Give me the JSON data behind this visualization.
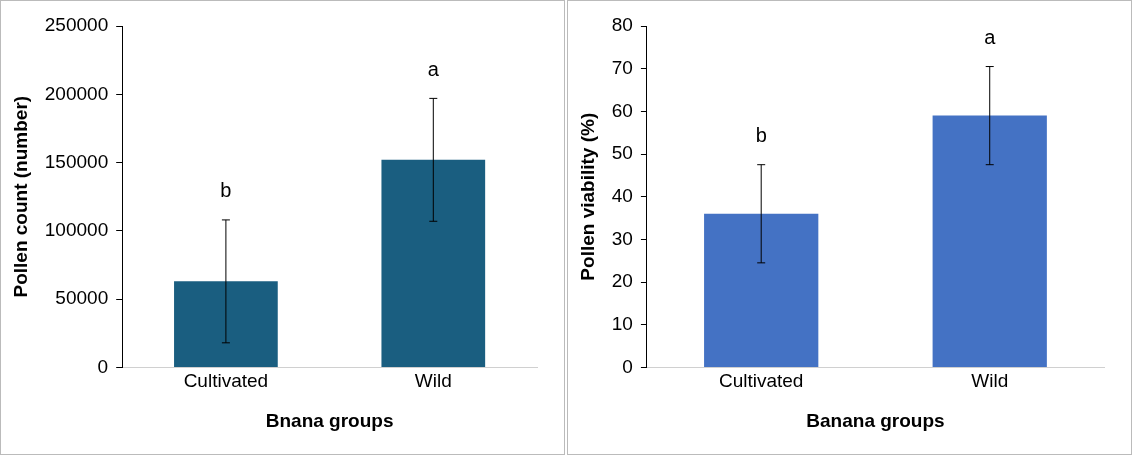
{
  "chart_data": [
    {
      "type": "bar",
      "xlabel": "Bnana groups",
      "ylabel": "Pollen count (number)",
      "categories": [
        "Cultivated",
        "Wild"
      ],
      "values": [
        63000,
        152000
      ],
      "errors": [
        45000,
        45000
      ],
      "color": "#1a5e80",
      "ylim": [
        0,
        250000
      ],
      "yticks": [
        0,
        50000,
        100000,
        150000,
        200000,
        250000
      ],
      "grid": false,
      "legend": false,
      "annotations": [
        "b",
        "a"
      ]
    },
    {
      "type": "bar",
      "xlabel": "Banana groups",
      "ylabel": "Pollen viability (%)",
      "categories": [
        "Cultivated",
        "Wild"
      ],
      "values": [
        36,
        59
      ],
      "errors": [
        11.5,
        11.5
      ],
      "color": "#4472c4",
      "ylim": [
        0,
        80
      ],
      "yticks": [
        0,
        10,
        20,
        30,
        40,
        50,
        60,
        70,
        80
      ],
      "grid": false,
      "legend": false,
      "annotations": [
        "b",
        "a"
      ]
    }
  ]
}
